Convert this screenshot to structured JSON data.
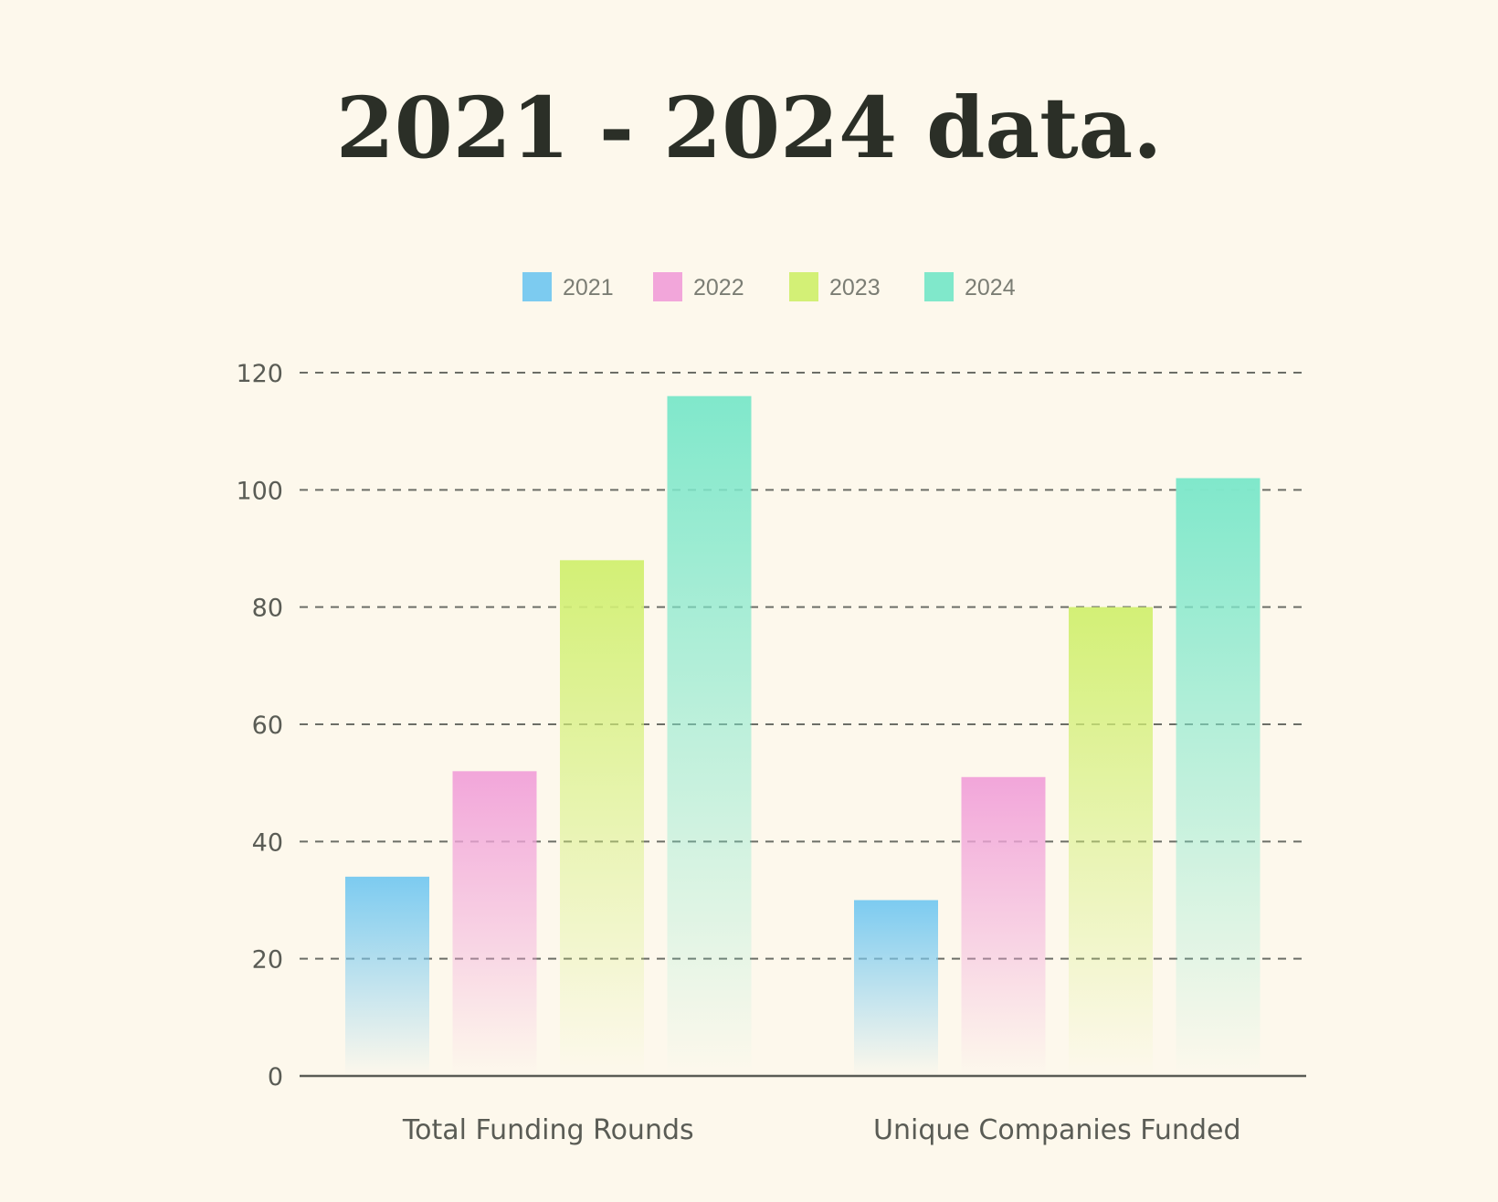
{
  "chart_data": {
    "type": "bar",
    "title": "2021 - 2024 data.",
    "categories": [
      "Total Funding Rounds",
      "Unique Companies Funded"
    ],
    "series": [
      {
        "name": "2021",
        "color": "#7ccbf0",
        "values": [
          34,
          30
        ]
      },
      {
        "name": "2022",
        "color": "#f2a6da",
        "values": [
          52,
          51
        ]
      },
      {
        "name": "2023",
        "color": "#d3f076",
        "values": [
          88,
          80
        ]
      },
      {
        "name": "2024",
        "color": "#80e8cb",
        "values": [
          116,
          102
        ]
      }
    ],
    "ylim": [
      0,
      120
    ],
    "yticks": [
      0,
      20,
      40,
      60,
      80,
      100,
      120
    ],
    "grid": "dashed",
    "legend": "top-center",
    "xlabel": "",
    "ylabel": ""
  }
}
